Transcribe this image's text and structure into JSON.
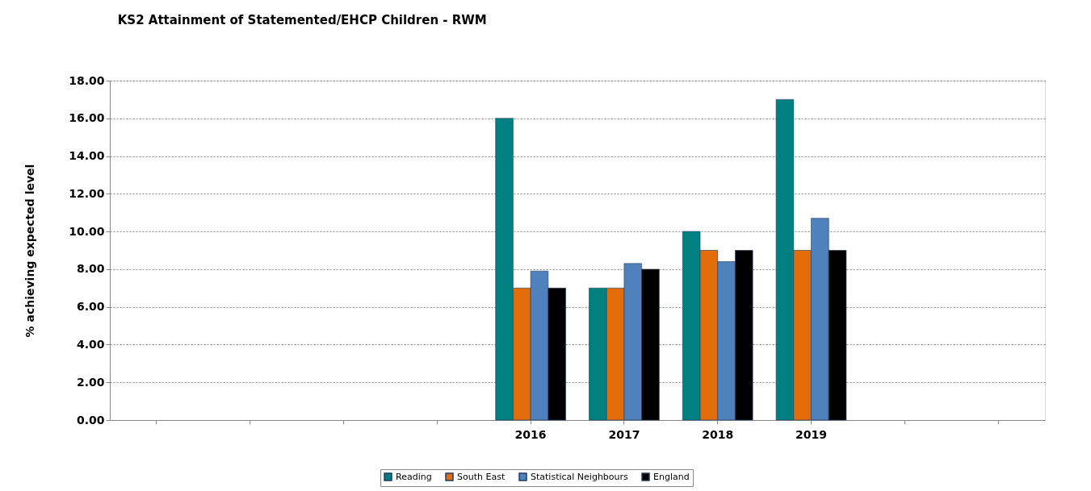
{
  "chart_data": {
    "type": "bar",
    "title": "KS2 Attainment of Statemented/EHCP Children - RWM",
    "ylabel": "% achieving expected level",
    "categories": [
      null,
      null,
      null,
      null,
      "2016",
      "2017",
      "2018",
      "2019",
      null,
      null
    ],
    "series": [
      {
        "name": "Reading",
        "color": "#008080",
        "values": [
          null,
          null,
          null,
          null,
          16,
          7,
          10,
          17,
          null,
          null
        ]
      },
      {
        "name": "South East",
        "color": "#e36c0a",
        "values": [
          null,
          null,
          null,
          null,
          7,
          7,
          9,
          9,
          null,
          null
        ]
      },
      {
        "name": "Statistical Neighbours",
        "color": "#4f81bd",
        "values": [
          null,
          null,
          null,
          null,
          7.9,
          8.3,
          8.4,
          10.7,
          null,
          null
        ]
      },
      {
        "name": "England",
        "color": "#000000",
        "values": [
          null,
          null,
          null,
          null,
          7,
          8,
          9,
          9,
          null,
          null
        ]
      }
    ],
    "ylim": [
      0,
      18
    ],
    "yticks": [
      {
        "value": 0,
        "label": "0.00"
      },
      {
        "value": 2,
        "label": "2.00"
      },
      {
        "value": 4,
        "label": "4.00"
      },
      {
        "value": 6,
        "label": "6.00"
      },
      {
        "value": 8,
        "label": "8.00"
      },
      {
        "value": 10,
        "label": "10.00"
      },
      {
        "value": 12,
        "label": "12.00"
      },
      {
        "value": 14,
        "label": "14.00"
      },
      {
        "value": 16,
        "label": "16.00"
      },
      {
        "value": 18,
        "label": "18.00"
      }
    ],
    "grid": "y",
    "legend": "bottom"
  }
}
